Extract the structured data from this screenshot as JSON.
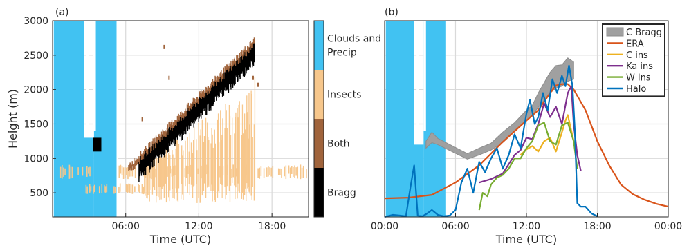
{
  "chart_data": [
    {
      "panel_label": "(a)",
      "type": "heatmap",
      "xlabel": "Time (UTC)",
      "ylabel": "Height (m)",
      "xlim": [
        0,
        21
      ],
      "ylim": [
        150,
        3000
      ],
      "x_ticks": [
        6,
        12,
        18
      ],
      "x_tick_labels": [
        "06:00",
        "12:00",
        "18:00"
      ],
      "y_ticks": [
        500,
        1000,
        1500,
        2000,
        2500,
        3000
      ],
      "y_tick_labels": [
        "500",
        "1000",
        "1500",
        "2000",
        "2500",
        "3000"
      ],
      "grid": true,
      "colorbar": {
        "categories": [
          "Clouds and Precip",
          "Insects",
          "Both",
          "Bragg"
        ],
        "category_lines": [
          [
            "Clouds and",
            "Precip"
          ],
          [
            "Insects"
          ],
          [
            "Both"
          ],
          [
            "Bragg"
          ]
        ],
        "colors": [
          "#41c2f2",
          "#f7c78c",
          "#a0643c",
          "#000000"
        ]
      },
      "regions": [
        {
          "category": "Clouds and Precip",
          "x": [
            0.1,
            2.6
          ],
          "y": [
            150,
            3000
          ]
        },
        {
          "category": "Clouds and Precip",
          "x": [
            2.6,
            3.4
          ],
          "y": [
            150,
            1300
          ]
        },
        {
          "category": "Clouds and Precip",
          "x": [
            3.4,
            5.3
          ],
          "y": [
            150,
            3000
          ]
        },
        {
          "category": "Bragg",
          "x": [
            3.3,
            4.0
          ],
          "y": [
            1100,
            1300
          ]
        },
        {
          "category": "Bragg",
          "x": [
            7.0,
            16.3
          ],
          "y": [
            900,
            2650
          ],
          "shape": "rising band"
        },
        {
          "category": "Insects",
          "x": [
            7.5,
            16.5
          ],
          "y": [
            350,
            1800
          ]
        },
        {
          "category": "Insects",
          "x": [
            0.5,
            21
          ],
          "y": [
            700,
            900
          ]
        },
        {
          "category": "Both",
          "x": [
            6.0,
            16.7
          ],
          "y": [
            900,
            2500
          ]
        }
      ]
    },
    {
      "panel_label": "(b)",
      "type": "line",
      "xlabel": "Time (UTC)",
      "ylabel": "",
      "xlim": [
        0,
        24
      ],
      "ylim": [
        150,
        3000
      ],
      "x_ticks": [
        0,
        6,
        12,
        18,
        24
      ],
      "x_tick_labels": [
        "00:00",
        "06:00",
        "12:00",
        "18:00",
        "00:00"
      ],
      "grid": true,
      "legend_position": "top-right",
      "background_clouds": [
        {
          "x": [
            0.1,
            2.5
          ],
          "y": [
            150,
            3000
          ]
        },
        {
          "x": [
            2.5,
            3.3
          ],
          "y": [
            150,
            1200
          ]
        },
        {
          "x": [
            3.3,
            5.2
          ],
          "y": [
            150,
            3000
          ]
        }
      ],
      "series": [
        {
          "name": "C Bragg",
          "color": "#a0a0a0",
          "style": "band",
          "x": [
            3.5,
            4.0,
            4.5,
            7.0,
            8.0,
            9.0,
            10.0,
            11.0,
            12.0,
            12.5,
            13.0,
            14.0,
            14.5,
            15.0,
            15.5,
            16.0
          ],
          "lower": [
            1150,
            1230,
            1200,
            990,
            1050,
            1120,
            1230,
            1390,
            1550,
            1630,
            1740,
            1950,
            2020,
            2050,
            2120,
            2150
          ],
          "upper": [
            1250,
            1380,
            1290,
            1070,
            1150,
            1220,
            1380,
            1520,
            1700,
            1770,
            1950,
            2250,
            2350,
            2360,
            2460,
            2400
          ]
        },
        {
          "name": "ERA",
          "color": "#d95319",
          "x": [
            0,
            2,
            4,
            6,
            8,
            10,
            12,
            13,
            14,
            14.5,
            15,
            15.5,
            16,
            17,
            18,
            19,
            20,
            21,
            22,
            23,
            24
          ],
          "values": [
            420,
            430,
            470,
            650,
            900,
            1240,
            1550,
            1700,
            1950,
            2060,
            2080,
            2080,
            2000,
            1700,
            1250,
            900,
            620,
            480,
            400,
            340,
            300
          ]
        },
        {
          "name": "C ins",
          "color": "#edb120",
          "x": [
            11.5,
            12,
            12.5,
            13,
            13.5,
            14,
            14.5,
            15,
            15.3,
            15.5,
            15.8,
            16
          ],
          "values": [
            1050,
            1130,
            1180,
            1100,
            1250,
            1300,
            1100,
            1380,
            1550,
            1630,
            1400,
            1250
          ]
        },
        {
          "name": "Ka ins",
          "color": "#7e2f8e",
          "x": [
            8,
            9,
            10,
            11,
            11.5,
            12,
            12.5,
            13,
            13.5,
            14,
            14.5,
            15,
            15.5,
            15.8,
            16,
            16.3,
            16.6
          ],
          "values": [
            650,
            700,
            780,
            1050,
            1120,
            1300,
            1280,
            1500,
            1800,
            1600,
            1750,
            1500,
            1950,
            2050,
            1500,
            1050,
            820
          ]
        },
        {
          "name": "W ins",
          "color": "#77ac30",
          "x": [
            8,
            8.3,
            8.7,
            9,
            9.5,
            10,
            10.5,
            11,
            11.5,
            12,
            12.5,
            13,
            13.5,
            14,
            14.5,
            15,
            15.5,
            16,
            16.3
          ],
          "values": [
            250,
            500,
            450,
            620,
            720,
            760,
            850,
            1000,
            1000,
            1150,
            1250,
            1480,
            1520,
            1250,
            1200,
            1480,
            1520,
            1250,
            850
          ]
        },
        {
          "name": "Halo",
          "color": "#0072bd",
          "x": [
            0,
            0.7,
            1.3,
            1.8,
            2.2,
            2.5,
            2.8,
            3.2,
            3.6,
            4.0,
            4.5,
            5.0,
            5.5,
            6.0,
            6.5,
            7.0,
            7.5,
            8.0,
            8.5,
            9.0,
            9.5,
            10.0,
            10.5,
            11.0,
            11.5,
            12.0,
            12.3,
            12.7,
            13.0,
            13.4,
            13.8,
            14.2,
            14.6,
            15.0,
            15.3,
            15.6,
            15.9,
            16.1,
            16.3,
            16.6,
            17.0,
            17.5,
            18.0
          ],
          "values": [
            150,
            180,
            170,
            160,
            600,
            900,
            170,
            160,
            200,
            250,
            180,
            160,
            170,
            250,
            650,
            850,
            500,
            950,
            800,
            1000,
            1150,
            850,
            1050,
            1350,
            1150,
            1650,
            1850,
            1500,
            1600,
            1950,
            1700,
            2150,
            1950,
            2200,
            2050,
            2350,
            2050,
            1400,
            350,
            300,
            300,
            200,
            160
          ]
        }
      ]
    }
  ]
}
